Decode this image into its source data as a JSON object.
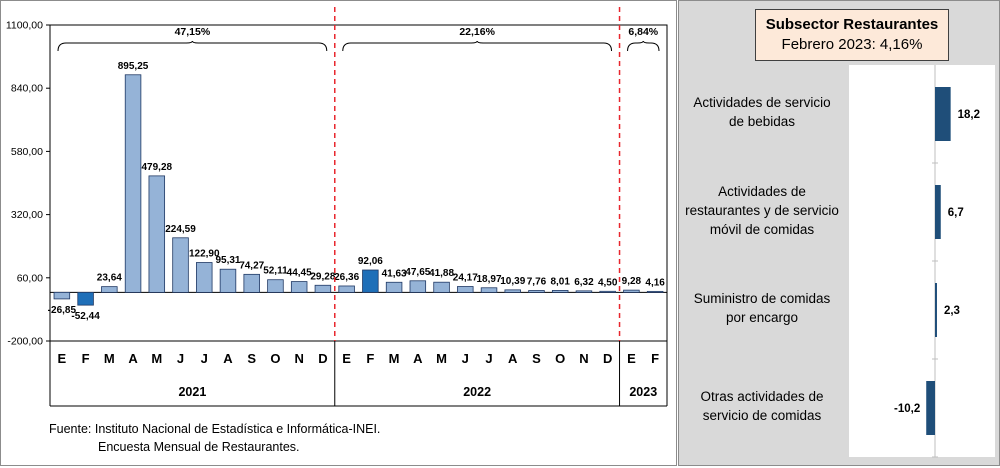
{
  "left_chart": {
    "y_ticks": [
      "1100,00",
      "840,00",
      "580,00",
      "320,00",
      "60,00",
      "-200,00"
    ],
    "year_labels": [
      "2021",
      "2022",
      "2023"
    ],
    "brace_labels": [
      "47,15%",
      "22,16%",
      "6,84%"
    ],
    "source_line1": "Fuente: Instituto Nacional de Estadística e Informática-INEI.",
    "source_line2": "Encuesta Mensual de  Restaurantes.",
    "colors": {
      "bar_light": "#95b3d7",
      "bar_dark": "#1f6fb8",
      "bar_outline": "#1f3864",
      "divider": "#e8262d"
    }
  },
  "right_chart": {
    "title": "Subsector Restaurantes",
    "subtitle": "Febrero 2023: 4,16%",
    "categories": [
      [
        "Actividades de servicio",
        "de bebidas"
      ],
      [
        "Actividades de",
        "restaurantes y de servicio",
        "móvil de comidas"
      ],
      [
        "Suministro de comidas",
        "por encargo"
      ],
      [
        "Otras actividades de",
        "servicio de comidas"
      ]
    ],
    "labels": [
      "18,2",
      "6,7",
      "2,3",
      "-10,2"
    ],
    "colors": {
      "bar": "#1f4e79",
      "title_bg": "#fde9d9"
    }
  },
  "chart_data": [
    {
      "type": "bar",
      "categories": [
        "E",
        "F",
        "M",
        "A",
        "M",
        "J",
        "J",
        "A",
        "S",
        "O",
        "N",
        "D",
        "E",
        "F",
        "M",
        "A",
        "M",
        "J",
        "J",
        "A",
        "S",
        "O",
        "N",
        "D",
        "E",
        "F"
      ],
      "groups": [
        "2021",
        "2022",
        "2023"
      ],
      "values": [
        -26.85,
        -52.44,
        23.64,
        895.25,
        479.28,
        224.59,
        122.9,
        95.31,
        74.27,
        52.11,
        44.45,
        29.28,
        26.36,
        92.06,
        41.63,
        47.65,
        41.88,
        24.17,
        18.97,
        10.39,
        7.76,
        8.01,
        6.32,
        4.5,
        9.28,
        4.16
      ],
      "value_labels": [
        "-26,85",
        "-52,44",
        "23,64",
        "895,25",
        "479,28",
        "224,59",
        "122,90",
        "95,31",
        "74,27",
        "52,11",
        "44,45",
        "29,28",
        "26,36",
        "92,06",
        "41,63",
        "47,65",
        "41,88",
        "24,17",
        "18,97",
        "10,39",
        "7,76",
        "8,01",
        "6,32",
        "4,50",
        "9,28",
        "4,16"
      ],
      "highlight": [
        1,
        13
      ],
      "ylim": [
        -200,
        1100
      ]
    },
    {
      "type": "bar",
      "orientation": "horizontal",
      "categories": [
        "Actividades de servicio de bebidas",
        "Actividades de restaurantes y de servicio móvil de comidas",
        "Suministro de comidas por encargo",
        "Otras actividades de servicio de comidas"
      ],
      "values": [
        18.2,
        6.7,
        2.3,
        -10.2
      ],
      "title": "Subsector Restaurantes",
      "subtitle": "Febrero 2023: 4,16%"
    }
  ]
}
